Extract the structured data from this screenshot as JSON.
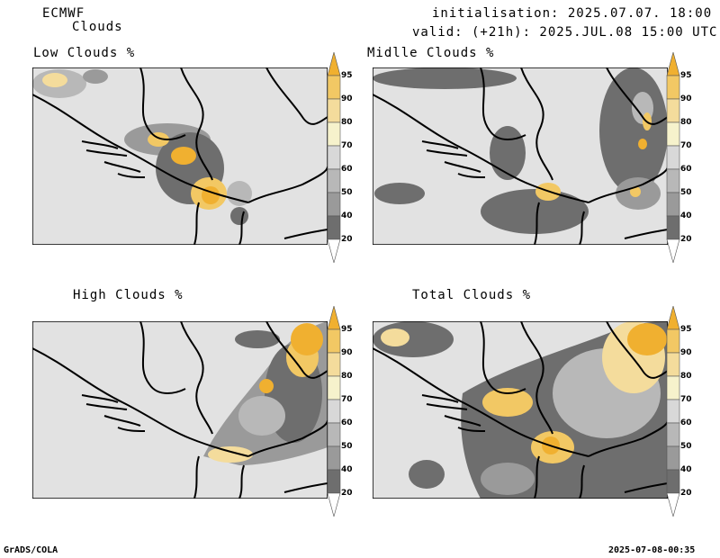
{
  "header": {
    "model": "ECMWF",
    "product": "Clouds",
    "initialisation": "initialisation: 2025.07.07. 18:00 UTC",
    "valid": "valid: (+21h): 2025.JUL.08 15:00 UTC"
  },
  "panels": [
    {
      "id": "low",
      "title": "Low Clouds %"
    },
    {
      "id": "middle",
      "title": "Midlle Clouds %"
    },
    {
      "id": "high",
      "title": "High Clouds %"
    },
    {
      "id": "total",
      "title": "Total Clouds %"
    }
  ],
  "colorbar": {
    "levels": [
      "95",
      "90",
      "80",
      "70",
      "60",
      "50",
      "40",
      "20"
    ],
    "colors": [
      "#f0b030",
      "#f2c864",
      "#f4dc9c",
      "#f6f2cc",
      "#d8d8d8",
      "#b8b8b8",
      "#9a9a9a",
      "#6e6e6e",
      "#4e4e4e"
    ],
    "background": "#e2e2e2"
  },
  "footer": {
    "left": "GrADS/COLA",
    "right": "2025-07-08-00:35"
  }
}
